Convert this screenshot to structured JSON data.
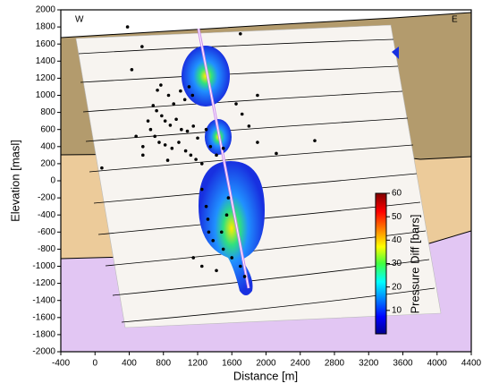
{
  "chart_data": {
    "type": "scatter",
    "x_label": "Distance [m]",
    "y_label": "Elevation [masl]",
    "annotations": [
      "W",
      "E"
    ],
    "xlim": [
      -400,
      4400
    ],
    "ylim": [
      -2000,
      2000
    ],
    "xticks": [
      -400,
      0,
      400,
      800,
      1200,
      1600,
      2000,
      2400,
      2800,
      3200,
      3600,
      4000,
      4400
    ],
    "yticks": [
      -2000,
      -1800,
      -1600,
      -1400,
      -1200,
      -1000,
      -800,
      -600,
      -400,
      -200,
      0,
      200,
      400,
      600,
      800,
      1000,
      1200,
      1400,
      1600,
      1800,
      2000
    ],
    "color": "#000000",
    "x": [
      380,
      550,
      1700,
      430,
      770,
      730,
      860,
      1000,
      920,
      1050,
      1100,
      1140,
      680,
      720,
      780,
      820,
      880,
      950,
      1010,
      1080,
      1150,
      1200,
      620,
      650,
      700,
      750,
      820,
      900,
      980,
      1060,
      1120,
      1180,
      1250,
      560,
      480,
      1300,
      1350,
      1420,
      1500,
      1650,
      1720,
      1800,
      1900,
      2570,
      2120,
      1900,
      80,
      560,
      850,
      1250,
      1300,
      1320,
      1330,
      1380,
      1500,
      1600,
      1700,
      1750,
      1150,
      1250,
      1420,
      1560,
      1540,
      1480
    ],
    "y": [
      1800,
      1570,
      1720,
      1300,
      1120,
      1060,
      1000,
      1050,
      900,
      950,
      1100,
      1000,
      880,
      820,
      760,
      700,
      650,
      720,
      600,
      580,
      640,
      500,
      700,
      600,
      520,
      450,
      420,
      380,
      450,
      350,
      300,
      250,
      200,
      400,
      520,
      600,
      400,
      300,
      380,
      900,
      780,
      640,
      1000,
      470,
      320,
      450,
      150,
      300,
      240,
      -100,
      -300,
      -450,
      -600,
      -700,
      -800,
      -900,
      -1000,
      -1120,
      -900,
      -1000,
      -1050,
      -200,
      -400,
      -600
    ],
    "colorbar": {
      "label": "Pressure Diff [bars]",
      "lim": [
        0,
        60
      ],
      "ticks": [
        10,
        20,
        30,
        40,
        50,
        60
      ]
    }
  }
}
